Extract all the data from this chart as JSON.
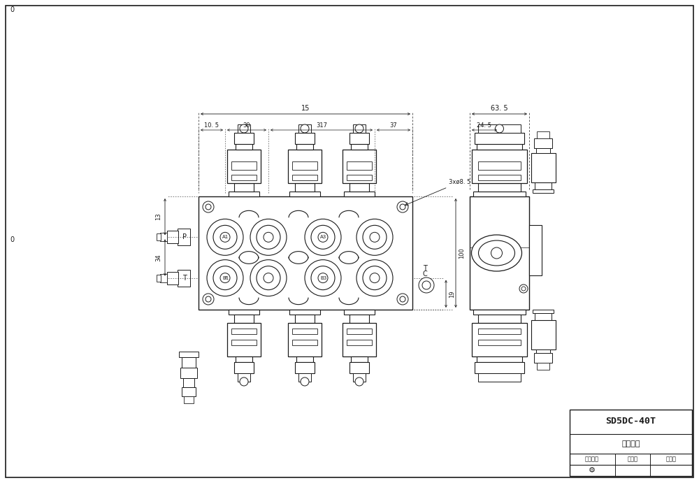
{
  "bg_color": "#ffffff",
  "line_color": "#1a1a1a",
  "title_main": "SD5DC-40T",
  "title_sub": "图纸编号",
  "bottom_row": [
    "设备标号",
    "版本号",
    "版本号"
  ],
  "dim_15": "15",
  "dim_10_5": "10. 5",
  "dim_30": "30",
  "dim_317": "317",
  "dim_37": "37",
  "dim_63_5": "63. 5",
  "dim_24_5": "24. 5",
  "dim_3x8_5": "3xø8. 5",
  "dim_13": "13",
  "dim_34": "34",
  "dim_19": "19",
  "dim_100": "100",
  "label_P": "P",
  "label_T": "T",
  "label_C": "C",
  "label_A1": "A1",
  "label_A3": "A3",
  "label_B1": "B1",
  "label_B3": "B3"
}
